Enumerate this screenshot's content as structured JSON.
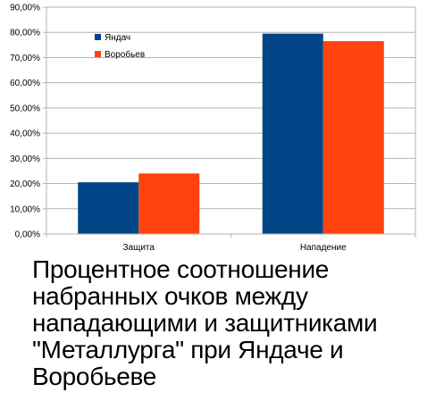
{
  "caption": "Процентное соотношение набранных очков между нападающими и защитниками \"Металлурга\" при Яндаче и Воробьеве",
  "colors": {
    "series1": "#004586",
    "series2": "#ff420e",
    "grid": "#b3b3b3",
    "axis": "#b3b3b3"
  },
  "chart_data": {
    "type": "bar",
    "categories": [
      "Защита",
      "Нападение"
    ],
    "series": [
      {
        "name": "Яндач",
        "values": [
          20.5,
          79.5
        ]
      },
      {
        "name": "Воробьев",
        "values": [
          24,
          76.5
        ]
      }
    ],
    "ylim": [
      0,
      90
    ],
    "ystep": 10,
    "ytick_labels": [
      "0,00%",
      "10,00%",
      "20,00%",
      "30,00%",
      "40,00%",
      "50,00%",
      "60,00%",
      "70,00%",
      "80,00%",
      "90,00%"
    ],
    "grid": true,
    "legend": "top-left",
    "title": "",
    "xlabel": "",
    "ylabel": ""
  }
}
